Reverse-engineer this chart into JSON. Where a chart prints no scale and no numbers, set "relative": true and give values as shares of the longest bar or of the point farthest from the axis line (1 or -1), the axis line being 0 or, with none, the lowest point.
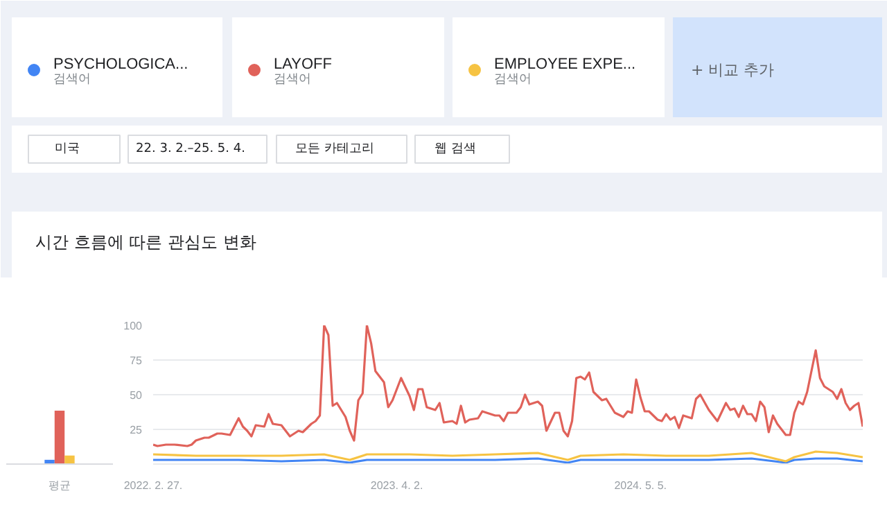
{
  "chart_data": [
    {
      "type": "line",
      "title": "시간 흐름에 따른 관심도 변화",
      "legend": "top",
      "grid": "y",
      "annotations": [
        "검색어",
        "검색어",
        "검색어",
        "+  비교 추가",
        "미국",
        "22. 3. 2.–25. 5. 4.",
        "모든 카테고리",
        "웹 검색"
      ],
      "xlim": [
        "2022-02-27",
        "2025-05-04"
      ],
      "xticks": [
        {
          "value": "2022-02-27",
          "label": "2022. 2. 27."
        },
        {
          "value": "2023-04-02",
          "label": "2023. 4. 2."
        },
        {
          "value": "2024-05-05",
          "label": "2024. 5. 5."
        }
      ],
      "ylim": [
        0,
        100
      ],
      "yticks": [
        25,
        50,
        75,
        100
      ],
      "series": [
        {
          "name": "PSYCHOLOGICA...",
          "color": "#4285f4",
          "x": [
            "2022-02-27",
            "2022-05-08",
            "2022-07-17",
            "2022-09-25",
            "2022-12-04",
            "2023-01-15",
            "2023-02-12",
            "2023-04-23",
            "2023-07-02",
            "2023-09-10",
            "2023-11-19",
            "2024-01-07",
            "2024-01-28",
            "2024-04-07",
            "2024-06-16",
            "2024-08-25",
            "2024-11-03",
            "2024-12-29",
            "2025-01-12",
            "2025-02-16",
            "2025-03-23",
            "2025-05-04"
          ],
          "values": [
            3,
            3,
            3,
            2,
            3,
            1,
            3,
            3,
            3,
            3,
            4,
            1,
            3,
            3,
            3,
            3,
            4,
            1,
            3,
            4,
            4,
            2
          ]
        },
        {
          "name": "LAYOFF",
          "color": "#e0625a",
          "x": [
            "2022-02-27",
            "2022-03-06",
            "2022-03-20",
            "2022-04-03",
            "2022-04-24",
            "2022-05-01",
            "2022-05-08",
            "2022-05-22",
            "2022-05-29",
            "2022-06-12",
            "2022-06-19",
            "2022-07-03",
            "2022-07-17",
            "2022-07-24",
            "2022-07-31",
            "2022-08-07",
            "2022-08-14",
            "2022-08-28",
            "2022-09-04",
            "2022-09-11",
            "2022-09-25",
            "2022-10-02",
            "2022-10-09",
            "2022-10-23",
            "2022-10-30",
            "2022-11-13",
            "2022-11-20",
            "2022-11-27",
            "2022-12-04",
            "2022-12-11",
            "2022-12-18",
            "2022-12-25",
            "2023-01-08",
            "2023-01-15",
            "2023-01-22",
            "2023-01-29",
            "2023-02-05",
            "2023-02-12",
            "2023-02-19",
            "2023-02-26",
            "2023-03-12",
            "2023-03-19",
            "2023-03-26",
            "2023-04-09",
            "2023-04-23",
            "2023-04-30",
            "2023-05-07",
            "2023-05-14",
            "2023-05-21",
            "2023-06-04",
            "2023-06-11",
            "2023-06-18",
            "2023-07-02",
            "2023-07-09",
            "2023-07-16",
            "2023-07-23",
            "2023-07-30",
            "2023-08-13",
            "2023-08-20",
            "2023-09-10",
            "2023-09-17",
            "2023-09-24",
            "2023-10-01",
            "2023-10-15",
            "2023-10-22",
            "2023-10-29",
            "2023-11-05",
            "2023-11-19",
            "2023-11-26",
            "2023-12-03",
            "2023-12-17",
            "2023-12-24",
            "2023-12-31",
            "2024-01-07",
            "2024-01-14",
            "2024-01-21",
            "2024-01-28",
            "2024-02-04",
            "2024-02-11",
            "2024-02-18",
            "2024-03-03",
            "2024-03-10",
            "2024-03-24",
            "2024-04-07",
            "2024-04-14",
            "2024-04-21",
            "2024-04-28",
            "2024-05-05",
            "2024-05-12",
            "2024-05-19",
            "2024-06-02",
            "2024-06-09",
            "2024-06-16",
            "2024-06-23",
            "2024-06-30",
            "2024-07-07",
            "2024-07-14",
            "2024-07-28",
            "2024-08-04",
            "2024-08-11",
            "2024-08-25",
            "2024-09-08",
            "2024-09-22",
            "2024-09-29",
            "2024-10-06",
            "2024-10-13",
            "2024-10-20",
            "2024-10-27",
            "2024-11-03",
            "2024-11-10",
            "2024-11-17",
            "2024-11-24",
            "2024-12-01",
            "2024-12-08",
            "2024-12-15",
            "2024-12-29",
            "2025-01-05",
            "2025-01-12",
            "2025-01-19",
            "2025-01-26",
            "2025-02-02",
            "2025-02-16",
            "2025-02-23",
            "2025-03-02",
            "2025-03-16",
            "2025-03-23",
            "2025-03-30",
            "2025-04-06",
            "2025-04-13",
            "2025-04-20",
            "2025-04-27",
            "2025-05-04"
          ],
          "values": [
            14,
            13,
            14,
            14,
            13,
            14,
            17,
            19,
            19,
            22,
            22,
            21,
            33,
            27,
            24,
            20,
            28,
            27,
            36,
            29,
            28,
            24,
            20,
            24,
            23,
            29,
            31,
            35,
            100,
            93,
            42,
            44,
            34,
            24,
            17,
            46,
            51,
            100,
            87,
            67,
            59,
            41,
            46,
            62,
            49,
            39,
            54,
            54,
            41,
            39,
            44,
            30,
            31,
            29,
            42,
            30,
            32,
            33,
            38,
            35,
            35,
            31,
            37,
            37,
            41,
            50,
            43,
            45,
            42,
            24,
            37,
            37,
            24,
            20,
            31,
            62,
            63,
            61,
            66,
            52,
            46,
            47,
            37,
            34,
            38,
            37,
            61,
            48,
            38,
            38,
            32,
            31,
            36,
            32,
            34,
            26,
            35,
            33,
            47,
            50,
            39,
            31,
            44,
            39,
            40,
            34,
            42,
            36,
            36,
            31,
            45,
            41,
            23,
            35,
            29,
            21,
            21,
            37,
            45,
            43,
            52,
            82,
            62,
            56,
            52,
            47,
            54,
            44,
            39,
            42,
            44,
            27
          ]
        },
        {
          "name": "EMPLOYEE EXPE...",
          "color": "#f6c343",
          "x": [
            "2022-02-27",
            "2022-05-08",
            "2022-07-17",
            "2022-09-25",
            "2022-12-04",
            "2023-01-15",
            "2023-02-12",
            "2023-04-23",
            "2023-07-02",
            "2023-09-10",
            "2023-11-19",
            "2024-01-07",
            "2024-01-28",
            "2024-04-07",
            "2024-06-16",
            "2024-08-25",
            "2024-11-03",
            "2024-12-29",
            "2025-01-12",
            "2025-02-16",
            "2025-03-23",
            "2025-05-04"
          ],
          "values": [
            7,
            6,
            6,
            6,
            7,
            3,
            7,
            7,
            6,
            7,
            8,
            3,
            6,
            7,
            6,
            6,
            8,
            2,
            5,
            9,
            8,
            5
          ]
        }
      ]
    },
    {
      "type": "bar",
      "relative": true,
      "categories": [
        "평균"
      ],
      "series": [
        {
          "color": "#4285f4",
          "values": [
            0.08
          ]
        },
        {
          "color": "#e0625a",
          "values": [
            1
          ]
        },
        {
          "color": "#f6c343",
          "values": [
            0.16
          ]
        }
      ]
    }
  ]
}
